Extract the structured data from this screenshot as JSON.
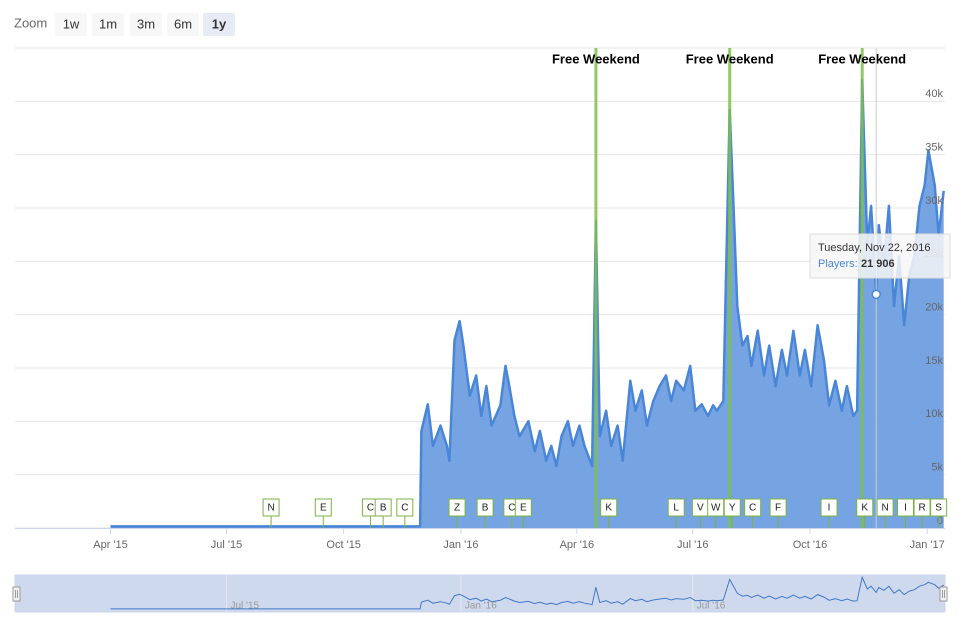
{
  "chart_data": {
    "type": "area",
    "zoom": {
      "label": "Zoom",
      "buttons": [
        "1w",
        "1m",
        "3m",
        "6m",
        "1y"
      ],
      "selected": 4
    },
    "color": "#4a86d8",
    "fill": "#6f9fe2",
    "grid": true,
    "xlim": [
      "2015-01-16",
      "2017-01-15"
    ],
    "xticks": [
      {
        "value": "2015-04-01",
        "label": "Apr '15"
      },
      {
        "value": "2015-07-01",
        "label": "Jul '15"
      },
      {
        "value": "2015-10-01",
        "label": "Oct '15"
      },
      {
        "value": "2016-01-01",
        "label": "Jan '16"
      },
      {
        "value": "2016-04-01",
        "label": "Apr '16"
      },
      {
        "value": "2016-07-01",
        "label": "Jul '16"
      },
      {
        "value": "2016-10-01",
        "label": "Oct '16"
      },
      {
        "value": "2017-01-01",
        "label": "Jan '17"
      }
    ],
    "ylim": [
      0,
      45000
    ],
    "yticks": [
      0,
      {
        "value": 5000,
        "label": "5k"
      },
      {
        "value": 10000,
        "label": "10k"
      },
      {
        "value": 15000,
        "label": "15k"
      },
      {
        "value": 20000,
        "label": "20k"
      },
      {
        "value": 25000,
        "label": "25k"
      },
      {
        "value": 30000,
        "label": "30k"
      },
      {
        "value": 35000,
        "label": "35k"
      },
      {
        "value": 40000,
        "label": "40k"
      }
    ],
    "x": [
      "2015-04-01",
      "2015-11-30",
      "2015-12-01",
      "2015-12-06",
      "2015-12-10",
      "2015-12-16",
      "2015-12-21",
      "2015-12-23",
      "2015-12-27",
      "2015-12-31",
      "2016-01-03",
      "2016-01-08",
      "2016-01-13",
      "2016-01-17",
      "2016-01-21",
      "2016-01-25",
      "2016-02-01",
      "2016-02-05",
      "2016-02-08",
      "2016-02-12",
      "2016-02-16",
      "2016-02-23",
      "2016-02-28",
      "2016-03-03",
      "2016-03-08",
      "2016-03-12",
      "2016-03-16",
      "2016-03-20",
      "2016-03-25",
      "2016-03-29",
      "2016-04-03",
      "2016-04-07",
      "2016-04-13",
      "2016-04-16",
      "2016-04-19",
      "2016-04-24",
      "2016-04-28",
      "2016-05-03",
      "2016-05-07",
      "2016-05-13",
      "2016-05-17",
      "2016-05-22",
      "2016-05-26",
      "2016-05-31",
      "2016-06-05",
      "2016-06-10",
      "2016-06-14",
      "2016-06-18",
      "2016-06-24",
      "2016-06-29",
      "2016-07-03",
      "2016-07-08",
      "2016-07-13",
      "2016-07-17",
      "2016-07-20",
      "2016-07-25",
      "2016-07-30",
      "2016-08-02",
      "2016-08-05",
      "2016-08-09",
      "2016-08-13",
      "2016-08-16",
      "2016-08-21",
      "2016-08-26",
      "2016-08-30",
      "2016-09-04",
      "2016-09-09",
      "2016-09-13",
      "2016-09-18",
      "2016-09-23",
      "2016-09-27",
      "2016-10-02",
      "2016-10-07",
      "2016-10-12",
      "2016-10-16",
      "2016-10-21",
      "2016-10-26",
      "2016-10-30",
      "2016-11-04",
      "2016-11-07",
      "2016-11-11",
      "2016-11-15",
      "2016-11-18",
      "2016-11-22",
      "2016-11-24",
      "2016-11-28",
      "2016-12-02",
      "2016-12-06",
      "2016-12-10",
      "2016-12-14",
      "2016-12-18",
      "2016-12-22",
      "2016-12-26",
      "2016-12-30",
      "2017-01-02",
      "2017-01-07",
      "2017-01-10",
      "2017-01-14"
    ],
    "values": [
      150,
      150,
      9100,
      11600,
      7700,
      9600,
      7700,
      6300,
      17600,
      19400,
      17100,
      12400,
      14300,
      10500,
      13300,
      9600,
      11500,
      15200,
      13300,
      10500,
      8600,
      10000,
      7200,
      9100,
      6300,
      7700,
      5800,
      8600,
      10000,
      7700,
      9600,
      7700,
      5800,
      28800,
      8600,
      11000,
      7700,
      9600,
      6300,
      13800,
      11000,
      12900,
      9600,
      11900,
      13300,
      14300,
      11900,
      13800,
      12900,
      15200,
      11000,
      11600,
      10500,
      11500,
      11000,
      11900,
      39200,
      30200,
      20800,
      17100,
      18000,
      15200,
      18500,
      14300,
      17100,
      13300,
      16700,
      14300,
      18500,
      14300,
      16700,
      13300,
      19000,
      15700,
      11500,
      13800,
      11000,
      13300,
      10500,
      11000,
      42000,
      26500,
      30200,
      21906,
      28400,
      24600,
      30200,
      20800,
      25500,
      19000,
      23700,
      25500,
      30200,
      32100,
      35400,
      32100,
      27400,
      31600
    ],
    "flags": [
      {
        "x": "2016-04-16",
        "label": "Free Weekend"
      },
      {
        "x": "2016-07-30",
        "label": "Free Weekend"
      },
      {
        "x": "2016-11-11",
        "label": "Free Weekend"
      }
    ],
    "events": [
      {
        "x": "2015-08-05",
        "label": "N"
      },
      {
        "x": "2015-09-15",
        "label": "E"
      },
      {
        "x": "2015-10-22",
        "label": "C"
      },
      {
        "x": "2015-11-01",
        "label": "B"
      },
      {
        "x": "2015-11-18",
        "label": "C"
      },
      {
        "x": "2015-12-29",
        "label": "Z"
      },
      {
        "x": "2016-01-20",
        "label": "B"
      },
      {
        "x": "2016-02-10",
        "label": "C"
      },
      {
        "x": "2016-02-19",
        "label": "E"
      },
      {
        "x": "2016-04-26",
        "label": "K"
      },
      {
        "x": "2016-06-18",
        "label": "L"
      },
      {
        "x": "2016-07-07",
        "label": "V"
      },
      {
        "x": "2016-07-19",
        "label": "W"
      },
      {
        "x": "2016-08-01",
        "label": "Y"
      },
      {
        "x": "2016-08-17",
        "label": "C"
      },
      {
        "x": "2016-09-06",
        "label": "F"
      },
      {
        "x": "2016-10-16",
        "label": "I"
      },
      {
        "x": "2016-11-13",
        "label": "K"
      },
      {
        "x": "2016-11-29",
        "label": "N"
      },
      {
        "x": "2016-12-15",
        "label": "I"
      },
      {
        "x": "2016-12-28",
        "label": "R"
      },
      {
        "x": "2017-01-10",
        "label": "S"
      }
    ],
    "tooltip": {
      "x": "2016-11-22",
      "title": "Tuesday, Nov 22, 2016",
      "series_label": "Players:",
      "value_label": "21 906"
    },
    "navigator_ticks": [
      {
        "value": "2015-07-01",
        "label": "Jul '15"
      },
      {
        "value": "2016-01-01",
        "label": "Jan '16"
      },
      {
        "value": "2016-07-01",
        "label": "Jul '16"
      }
    ]
  }
}
